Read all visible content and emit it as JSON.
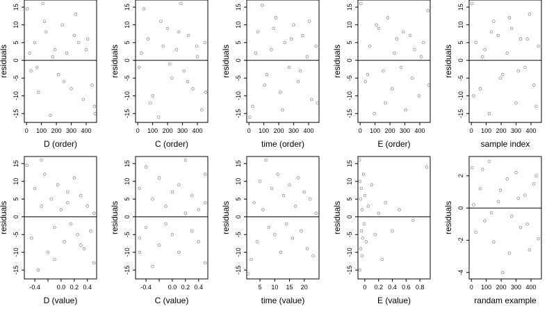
{
  "figure": {
    "grid": false
  },
  "chart_data": [
    {
      "type": "scatter",
      "xlabel": "D (order)",
      "ylabel": "residuals",
      "xlim": [
        -15,
        470
      ],
      "ylim": [
        -17.5,
        17
      ],
      "xticks": [
        0,
        100,
        200,
        300,
        400
      ],
      "yticks": [
        -15,
        -10,
        -5,
        0,
        5,
        10,
        15
      ],
      "hline": 0,
      "grid": false,
      "series": [
        {
          "x": [
            5,
            30,
            55,
            80,
            110,
            130,
            160,
            190,
            215,
            240,
            270,
            300,
            330,
            350,
            380,
            410,
            440,
            455,
            20,
            70,
            120,
            175,
            250,
            320,
            400,
            460
          ],
          "y": [
            14.5,
            -3,
            5,
            -9,
            16,
            8,
            -15.5,
            3,
            -4,
            10,
            2,
            -8,
            13,
            5,
            -11,
            6,
            -7,
            -13,
            2,
            -2,
            11,
            1,
            -6,
            7,
            3,
            -15
          ]
        }
      ]
    },
    {
      "type": "scatter",
      "xlabel": "C (order)",
      "ylabel": "residuals",
      "xlim": [
        -15,
        470
      ],
      "ylim": [
        -17.5,
        17
      ],
      "xticks": [
        0,
        100,
        200,
        300,
        400
      ],
      "yticks": [
        -15,
        -10,
        -5,
        0,
        5,
        10,
        15
      ],
      "hline": 0,
      "grid": false,
      "series": [
        {
          "x": [
            10,
            40,
            70,
            100,
            140,
            170,
            200,
            230,
            260,
            290,
            310,
            340,
            370,
            400,
            430,
            450,
            25,
            85,
            155,
            215,
            275,
            335,
            395,
            455
          ],
          "y": [
            -2,
            14.5,
            6,
            -10,
            -16,
            4,
            9,
            -5,
            3,
            16,
            -3,
            7,
            -8,
            1,
            -14,
            5,
            2,
            -12,
            11,
            -1,
            8,
            -6,
            4,
            -9
          ]
        }
      ]
    },
    {
      "type": "scatter",
      "xlabel": "time (order)",
      "ylabel": "residuals",
      "xlim": [
        -15,
        470
      ],
      "ylim": [
        -17.5,
        17
      ],
      "xticks": [
        0,
        100,
        200,
        300,
        400
      ],
      "yticks": [
        -15,
        -10,
        -5,
        0,
        5,
        10,
        15
      ],
      "hline": 0,
      "grid": false,
      "series": [
        {
          "x": [
            5,
            25,
            60,
            90,
            120,
            150,
            180,
            210,
            240,
            270,
            300,
            330,
            360,
            390,
            420,
            450,
            45,
            105,
            165,
            225,
            285,
            345,
            405,
            460
          ],
          "y": [
            -16,
            -13,
            8,
            15.5,
            -4,
            3,
            12,
            -9,
            5,
            -2,
            10,
            -6,
            7,
            1,
            -11,
            4,
            2,
            -7,
            9,
            -14,
            6,
            -3,
            11,
            -12
          ]
        }
      ]
    },
    {
      "type": "scatter",
      "xlabel": "E (order)",
      "ylabel": "residuals",
      "xlim": [
        -15,
        470
      ],
      "ylim": [
        -17.5,
        17
      ],
      "xticks": [
        0,
        100,
        200,
        300,
        400
      ],
      "yticks": [
        -15,
        -10,
        -5,
        0,
        5,
        10,
        15
      ],
      "hline": 0,
      "grid": false,
      "series": [
        {
          "x": [
            5,
            35,
            65,
            95,
            125,
            155,
            185,
            215,
            245,
            275,
            305,
            335,
            365,
            395,
            425,
            455,
            50,
            110,
            170,
            230,
            290,
            350,
            410,
            460
          ],
          "y": [
            16,
            -6,
            4,
            -15,
            9,
            -3,
            12,
            -8,
            6,
            -2,
            -14,
            7,
            3,
            -10,
            5,
            14,
            -4,
            10,
            -12,
            2,
            8,
            -5,
            1,
            -7
          ]
        }
      ]
    },
    {
      "type": "scatter",
      "xlabel": "sample index",
      "ylabel": "residuals",
      "xlim": [
        -15,
        470
      ],
      "ylim": [
        -17.5,
        17
      ],
      "xticks": [
        0,
        100,
        200,
        300,
        400
      ],
      "yticks": [
        -15,
        -10,
        -5,
        0,
        5,
        10,
        15
      ],
      "hline": 0,
      "grid": false,
      "series": [
        {
          "x": [
            5,
            30,
            60,
            90,
            120,
            150,
            180,
            210,
            240,
            270,
            300,
            330,
            360,
            390,
            420,
            450,
            15,
            75,
            135,
            195,
            255,
            315,
            375,
            435
          ],
          "y": [
            16,
            5,
            -8,
            3,
            -15,
            11,
            7,
            -4,
            2,
            9,
            -12,
            6,
            -2,
            13,
            -7,
            4,
            -10,
            1,
            8,
            -5,
            12,
            -3,
            6,
            -13
          ]
        }
      ]
    },
    {
      "type": "scatter",
      "xlabel": "D (value)",
      "ylabel": "residuals",
      "xlim": [
        -0.56,
        0.54
      ],
      "ylim": [
        -17.5,
        17
      ],
      "xticks": [
        -0.4,
        -0.2,
        0.0,
        0.2,
        0.4
      ],
      "xticklabels": [
        "-0.4",
        "",
        "0.0",
        "0.2",
        "0.4"
      ],
      "yticks": [
        -15,
        -10,
        -5,
        0,
        5,
        10,
        15
      ],
      "hline": 0,
      "grid": false,
      "series": [
        {
          "x": [
            -0.52,
            -0.45,
            -0.4,
            -0.35,
            -0.3,
            -0.25,
            -0.2,
            -0.15,
            -0.1,
            -0.05,
            0.0,
            0.05,
            0.1,
            0.15,
            0.2,
            0.25,
            0.3,
            0.35,
            0.4,
            0.45,
            0.5,
            -0.3,
            -0.1,
            0.1,
            0.3,
            0.5
          ],
          "y": [
            14.5,
            -6,
            8,
            -15,
            3,
            12,
            -10,
            5,
            -3,
            9,
            2,
            -7,
            4,
            -2,
            11,
            -5,
            6,
            -9,
            3,
            -4,
            -13,
            16,
            -12,
            7,
            -8,
            1
          ]
        }
      ]
    },
    {
      "type": "scatter",
      "xlabel": "C (value)",
      "ylabel": "residuals",
      "xlim": [
        -0.56,
        0.54
      ],
      "ylim": [
        -17.5,
        17
      ],
      "xticks": [
        -0.4,
        -0.2,
        0.0,
        0.2,
        0.4
      ],
      "xticklabels": [
        "-0.4",
        "",
        "0.0",
        "0.2",
        "0.4"
      ],
      "yticks": [
        -15,
        -10,
        -5,
        0,
        5,
        10,
        15
      ],
      "hline": 0,
      "grid": false,
      "series": [
        {
          "x": [
            -0.5,
            -0.5,
            -0.4,
            -0.4,
            -0.3,
            -0.3,
            -0.2,
            -0.2,
            -0.1,
            -0.1,
            0.0,
            0.0,
            0.1,
            0.1,
            0.2,
            0.2,
            0.3,
            0.3,
            0.4,
            0.4,
            0.5,
            0.5,
            0.5,
            -0.5
          ],
          "y": [
            -6,
            8,
            14,
            -3,
            -14,
            5,
            11,
            -8,
            3,
            -2,
            7,
            -5,
            9,
            -10,
            16,
            1,
            -4,
            6,
            -7,
            2,
            12,
            -13,
            4,
            -10
          ]
        }
      ]
    },
    {
      "type": "scatter",
      "xlabel": "time (value)",
      "ylabel": "residuals",
      "xlim": [
        0.5,
        25
      ],
      "ylim": [
        -17.5,
        17
      ],
      "xticks": [
        5,
        10,
        15,
        20
      ],
      "yticks": [
        -15,
        -10,
        -5,
        0,
        5,
        10,
        15
      ],
      "hline": 0,
      "grid": false,
      "series": [
        {
          "x": [
            1,
            2,
            3,
            4,
            5,
            6,
            7,
            8,
            9,
            10,
            11,
            12,
            13,
            14,
            15,
            16,
            17,
            18,
            19,
            20,
            21,
            22,
            23,
            24
          ],
          "y": [
            -16,
            -12,
            4,
            -7,
            10,
            2,
            16,
            -3,
            8,
            -5,
            12,
            -10,
            6,
            -2,
            9,
            -6,
            3,
            11,
            -4,
            7,
            -9,
            5,
            -11,
            1
          ]
        }
      ]
    },
    {
      "type": "scatter",
      "xlabel": "E (value)",
      "ylabel": "residuals",
      "xlim": [
        -0.1,
        0.95
      ],
      "ylim": [
        -17.5,
        17
      ],
      "xticks": [
        0.0,
        0.2,
        0.4,
        0.6,
        0.8
      ],
      "yticks": [
        -15,
        -10,
        -5,
        0,
        5,
        10,
        15
      ],
      "hline": 0,
      "grid": false,
      "series": [
        {
          "x": [
            -0.08,
            -0.07,
            -0.07,
            -0.06,
            -0.06,
            -0.05,
            -0.05,
            -0.04,
            -0.04,
            -0.03,
            -0.02,
            -0.01,
            0.0,
            0.02,
            0.05,
            0.1,
            0.15,
            0.2,
            0.25,
            0.3,
            0.4,
            0.5,
            0.7,
            0.9
          ],
          "y": [
            16,
            -15,
            10,
            -9,
            5,
            -4,
            8,
            -11,
            2,
            -6,
            12,
            -2,
            6,
            -7,
            3,
            9,
            -5,
            1,
            -12,
            4,
            -4,
            2,
            -1,
            14
          ]
        }
      ]
    },
    {
      "type": "scatter",
      "xlabel": "randam example",
      "ylabel": "residuals",
      "xlim": [
        -15,
        470
      ],
      "ylim": [
        -4.4,
        3.2
      ],
      "xticks": [
        0,
        100,
        200,
        300,
        400
      ],
      "yticks": [
        -4,
        -2,
        0,
        2
      ],
      "hline": 0,
      "grid": false,
      "series": [
        {
          "x": [
            5,
            30,
            60,
            90,
            120,
            150,
            180,
            210,
            240,
            270,
            300,
            330,
            360,
            390,
            420,
            450,
            15,
            75,
            135,
            195,
            255,
            315,
            375,
            435
          ],
          "y": [
            2.5,
            -1.5,
            1.2,
            -0.8,
            2.9,
            -2.1,
            0.4,
            -4.0,
            1.8,
            -0.5,
            2.2,
            -1.2,
            0.8,
            -2.6,
            1.5,
            -1.9,
            0.2,
            2.4,
            -0.3,
            1.1,
            -2.8,
            0.6,
            -1.0,
            2.0
          ]
        }
      ]
    }
  ]
}
